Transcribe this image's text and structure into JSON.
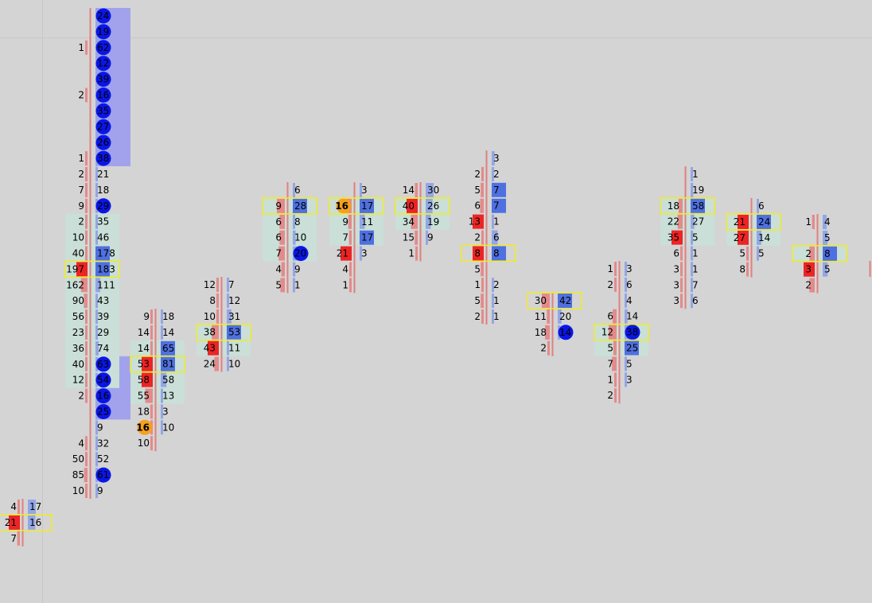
{
  "colors": {
    "background": "#d4d4d4",
    "ask_bar": "#4f70e0",
    "ask_bar_light": "#93a6e6",
    "bid_bar": "#ee2424",
    "bid_bar_light": "#e58a8a",
    "value_area": "#c9dfd8",
    "poc_outline": "#f2ec22",
    "ask_imbalance_dot": "#0a16e6",
    "bid_imbalance_dot": "#f5a11e",
    "stacked_zone": "#a2a2ec"
  },
  "chart_data": {
    "type": "footprint",
    "columns": [
      {
        "id": "c1",
        "rows": [
          {
            "bid": "4",
            "ask": "17"
          },
          {
            "bid": "21",
            "ask": "16",
            "poc": true,
            "bidHi": true
          },
          {
            "bid": "7",
            "ask": ""
          }
        ]
      },
      {
        "id": "c2",
        "rows": [
          {
            "bid": "",
            "ask": "24",
            "askDot": true
          },
          {
            "bid": "",
            "ask": "19",
            "askDot": true
          },
          {
            "bid": "1",
            "ask": "62",
            "askDot": true
          },
          {
            "bid": "",
            "ask": "12",
            "askDot": true
          },
          {
            "bid": "",
            "ask": "39",
            "askDot": true
          },
          {
            "bid": "2",
            "ask": "16",
            "askDot": true
          },
          {
            "bid": "",
            "ask": "35",
            "askDot": true
          },
          {
            "bid": "",
            "ask": "27",
            "askDot": true
          },
          {
            "bid": "",
            "ask": "26",
            "askDot": true
          },
          {
            "bid": "1",
            "ask": "38",
            "askDot": true
          },
          {
            "bid": "2",
            "ask": "21"
          },
          {
            "bid": "7",
            "ask": "18"
          },
          {
            "bid": "9",
            "ask": "29",
            "askDot": true
          },
          {
            "bid": "2",
            "ask": "35",
            "va": true
          },
          {
            "bid": "10",
            "ask": "46",
            "va": true
          },
          {
            "bid": "40",
            "ask": "178",
            "va": true,
            "askHi": true
          },
          {
            "bid": "197",
            "ask": "183",
            "va": true,
            "poc": true,
            "bidHi": true,
            "askHi": true
          },
          {
            "bid": "162",
            "ask": "111",
            "va": true
          },
          {
            "bid": "90",
            "ask": "43",
            "va": true
          },
          {
            "bid": "56",
            "ask": "39",
            "va": true
          },
          {
            "bid": "23",
            "ask": "29",
            "va": true
          },
          {
            "bid": "36",
            "ask": "74",
            "va": true
          },
          {
            "bid": "40",
            "ask": "63",
            "va": true,
            "askDot": true
          },
          {
            "bid": "12",
            "ask": "54",
            "va": true,
            "askDot": true
          },
          {
            "bid": "2",
            "ask": "16",
            "askDot": true
          },
          {
            "bid": "",
            "ask": "25",
            "askDot": true
          },
          {
            "bid": "",
            "ask": "9"
          },
          {
            "bid": "4",
            "ask": "32"
          },
          {
            "bid": "50",
            "ask": "52"
          },
          {
            "bid": "85",
            "ask": "61",
            "askDot": true
          },
          {
            "bid": "10",
            "ask": "9"
          }
        ]
      },
      {
        "id": "c3",
        "rows": [
          {
            "bid": "9",
            "ask": "18"
          },
          {
            "bid": "14",
            "ask": "14"
          },
          {
            "bid": "14",
            "ask": "65",
            "va": true,
            "askHi": true
          },
          {
            "bid": "53",
            "ask": "81",
            "va": true,
            "poc": true,
            "bidHi": true,
            "askHi": true
          },
          {
            "bid": "58",
            "ask": "58",
            "va": true,
            "bidHi": true
          },
          {
            "bid": "55",
            "ask": "13",
            "va": true
          },
          {
            "bid": "18",
            "ask": "3"
          },
          {
            "bid": "16",
            "ask": "10",
            "bidDot": true
          },
          {
            "bid": "10",
            "ask": ""
          }
        ]
      },
      {
        "id": "c4",
        "rows": [
          {
            "bid": "12",
            "ask": "7"
          },
          {
            "bid": "8",
            "ask": "12"
          },
          {
            "bid": "10",
            "ask": "31"
          },
          {
            "bid": "38",
            "ask": "53",
            "va": true,
            "poc": true,
            "askHi": true
          },
          {
            "bid": "43",
            "ask": "11",
            "va": true,
            "bidHi": true
          },
          {
            "bid": "24",
            "ask": "10"
          }
        ]
      },
      {
        "id": "c5",
        "rows": [
          {
            "bid": "",
            "ask": "6"
          },
          {
            "bid": "9",
            "ask": "28",
            "va": true,
            "poc": true,
            "askHi": true
          },
          {
            "bid": "6",
            "ask": "8",
            "va": true
          },
          {
            "bid": "6",
            "ask": "10",
            "va": true
          },
          {
            "bid": "7",
            "ask": "20",
            "va": true,
            "askDot": true
          },
          {
            "bid": "4",
            "ask": "9"
          },
          {
            "bid": "5",
            "ask": "1"
          }
        ]
      },
      {
        "id": "c6",
        "rows": [
          {
            "bid": "",
            "ask": "3"
          },
          {
            "bid": "16",
            "ask": "17",
            "va": true,
            "poc": true,
            "bidDot": true,
            "askHi": true
          },
          {
            "bid": "9",
            "ask": "11",
            "va": true
          },
          {
            "bid": "7",
            "ask": "17",
            "va": true,
            "askHi": true
          },
          {
            "bid": "21",
            "ask": "3",
            "bidHi": true
          },
          {
            "bid": "4",
            "ask": ""
          },
          {
            "bid": "1",
            "ask": ""
          }
        ]
      },
      {
        "id": "c7",
        "rows": [
          {
            "bid": "14",
            "ask": "30"
          },
          {
            "bid": "40",
            "ask": "26",
            "va": true,
            "poc": true,
            "bidHi": true
          },
          {
            "bid": "34",
            "ask": "19",
            "va": true
          },
          {
            "bid": "15",
            "ask": "9"
          },
          {
            "bid": "1",
            "ask": ""
          }
        ]
      },
      {
        "id": "c8",
        "rows": [
          {
            "bid": "",
            "ask": "3"
          },
          {
            "bid": "2",
            "ask": "2"
          },
          {
            "bid": "5",
            "ask": "7",
            "askHi": true
          },
          {
            "bid": "6",
            "ask": "7",
            "askHi": true
          },
          {
            "bid": "13",
            "ask": "1",
            "bidHi": true
          },
          {
            "bid": "2",
            "ask": "6"
          },
          {
            "bid": "8",
            "ask": "8",
            "poc": true,
            "bidHi": true,
            "askHi": true
          },
          {
            "bid": "5",
            "ask": ""
          },
          {
            "bid": "1",
            "ask": "2"
          },
          {
            "bid": "5",
            "ask": "1"
          },
          {
            "bid": "2",
            "ask": "1"
          }
        ]
      },
      {
        "id": "c9",
        "rows": [
          {
            "bid": "30",
            "ask": "42",
            "poc": true,
            "askHi": true
          },
          {
            "bid": "11",
            "ask": "20"
          },
          {
            "bid": "18",
            "ask": "14",
            "askDot": true
          },
          {
            "bid": "2",
            "ask": ""
          }
        ]
      },
      {
        "id": "c10",
        "rows": [
          {
            "bid": "1",
            "ask": "3"
          },
          {
            "bid": "2",
            "ask": "6"
          },
          {
            "bid": "",
            "ask": "4"
          },
          {
            "bid": "6",
            "ask": "14"
          },
          {
            "bid": "12",
            "ask": "38",
            "va": true,
            "poc": true,
            "askDot": true
          },
          {
            "bid": "5",
            "ask": "25",
            "va": true,
            "askHi": true
          },
          {
            "bid": "7",
            "ask": "5"
          },
          {
            "bid": "1",
            "ask": "3"
          },
          {
            "bid": "2",
            "ask": ""
          }
        ]
      },
      {
        "id": "c11",
        "rows": [
          {
            "bid": "",
            "ask": "1"
          },
          {
            "bid": "",
            "ask": "19"
          },
          {
            "bid": "18",
            "ask": "58",
            "va": true,
            "poc": true,
            "askHi": true
          },
          {
            "bid": "22",
            "ask": "27",
            "va": true
          },
          {
            "bid": "35",
            "ask": "5",
            "va": true,
            "bidHi": true
          },
          {
            "bid": "6",
            "ask": "1"
          },
          {
            "bid": "3",
            "ask": "1"
          },
          {
            "bid": "3",
            "ask": "7"
          },
          {
            "bid": "3",
            "ask": "6"
          }
        ]
      },
      {
        "id": "c12",
        "rows": [
          {
            "bid": "",
            "ask": "6"
          },
          {
            "bid": "21",
            "ask": "24",
            "va": true,
            "poc": true,
            "bidHi": true,
            "askHi": true
          },
          {
            "bid": "27",
            "ask": "14",
            "va": true,
            "bidHi": true
          },
          {
            "bid": "5",
            "ask": "5"
          },
          {
            "bid": "8",
            "ask": ""
          }
        ]
      },
      {
        "id": "c13",
        "rows": [
          {
            "bid": "1",
            "ask": "4"
          },
          {
            "bid": "",
            "ask": "5"
          },
          {
            "bid": "2",
            "ask": "8",
            "va": true,
            "poc": true,
            "askHi": true
          },
          {
            "bid": "3",
            "ask": "5",
            "bidHi": true
          },
          {
            "bid": "2",
            "ask": ""
          }
        ]
      },
      {
        "id": "c14",
        "rows": [
          {
            "bid": "",
            "ask": "",
            "bidHi": true
          }
        ]
      }
    ]
  }
}
